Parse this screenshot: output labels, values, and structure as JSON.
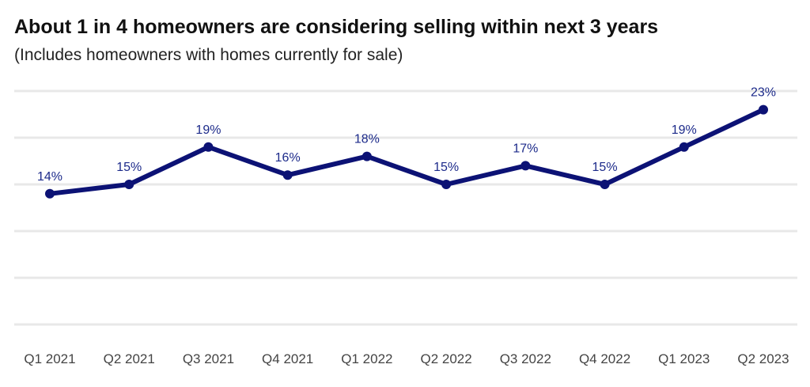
{
  "chart_data": {
    "type": "line",
    "title": "About 1 in 4 homeowners are considering selling within next 3 years",
    "subtitle": "(Includes homeowners with homes currently for sale)",
    "categories": [
      "Q1 2021",
      "Q2 2021",
      "Q3 2021",
      "Q4 2021",
      "Q1 2022",
      "Q2 2022",
      "Q3 2022",
      "Q4 2022",
      "Q1 2023",
      "Q2 2023"
    ],
    "series": [
      {
        "values": [
          14,
          15,
          19,
          16,
          18,
          15,
          17,
          15,
          19,
          23
        ],
        "labels": [
          "14%",
          "15%",
          "19%",
          "16%",
          "18%",
          "15%",
          "17%",
          "15%",
          "19%",
          "23%"
        ]
      }
    ],
    "ylim": [
      0,
      25
    ],
    "grid": true,
    "colors": {
      "line": "#0c1275",
      "label": "#1c2a8a",
      "grid": "#e8e8e8",
      "tick": "#444444"
    }
  }
}
